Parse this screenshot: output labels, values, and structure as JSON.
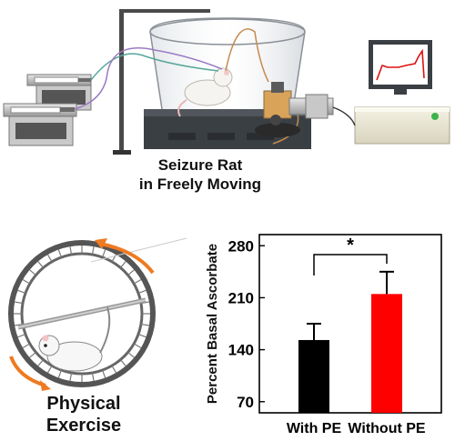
{
  "setup": {
    "caption_line1": "Seizure Rat",
    "caption_line2": "in Freely Moving"
  },
  "exercise": {
    "caption_line1": "Physical",
    "caption_line2": "Exercise"
  },
  "colors": {
    "bar_with_pe": "#000000",
    "bar_without_pe": "#ff0000",
    "wheel_arrow": "#ee7a21",
    "monitor_trace": "#dd1111"
  },
  "chart_data": {
    "type": "bar",
    "categories": [
      "With PE",
      "Without PE"
    ],
    "values": [
      153,
      215
    ],
    "errors": [
      22,
      30
    ],
    "ylabel": "Percent Basal Ascorbate",
    "ylim": [
      55,
      295
    ],
    "yticks": [
      70,
      140,
      210,
      280
    ],
    "significance_label": "*",
    "bar_colors": [
      "#000000",
      "#ff0000"
    ]
  }
}
